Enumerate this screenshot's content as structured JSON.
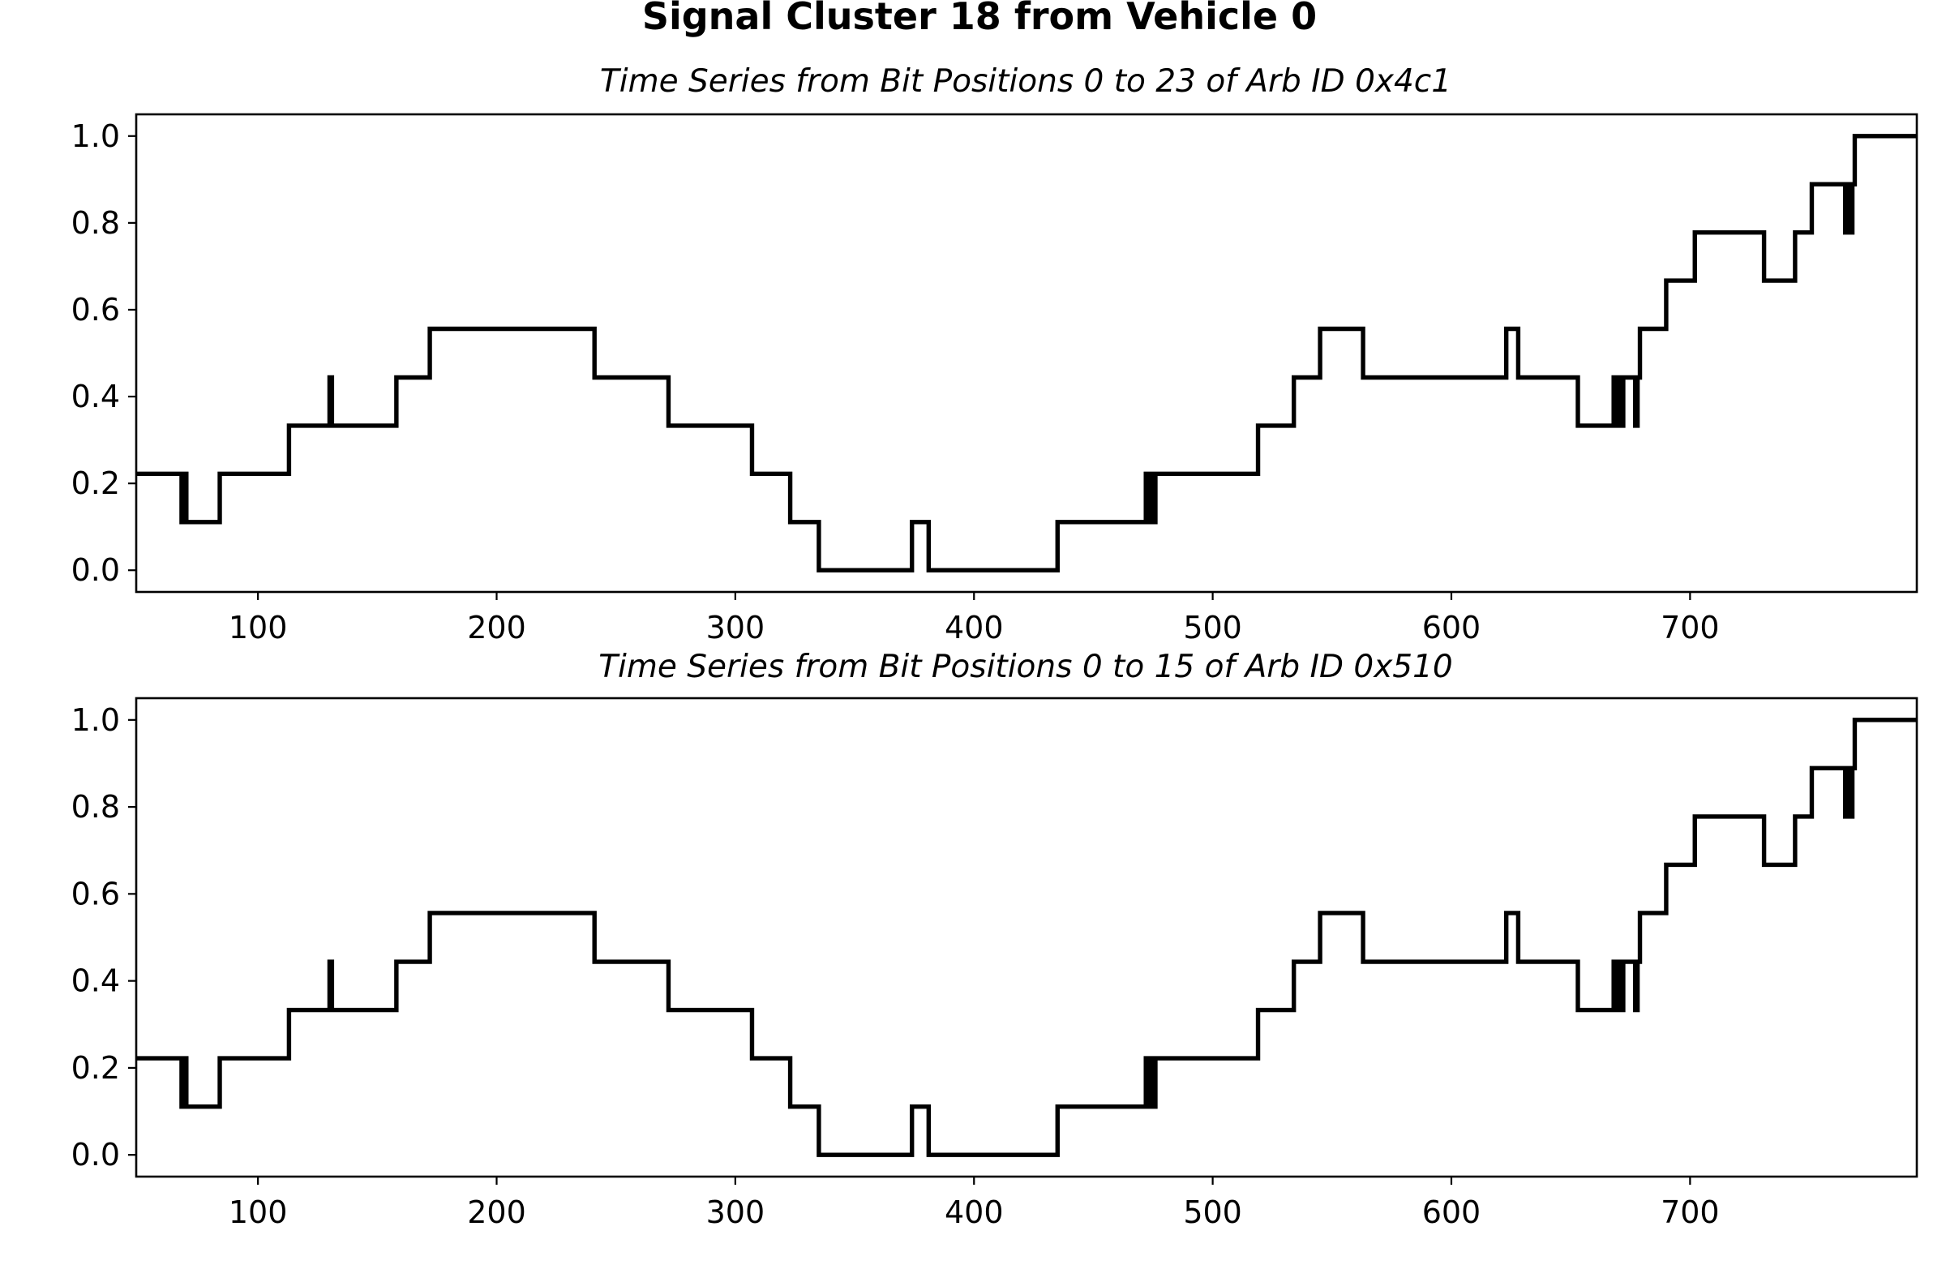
{
  "figure": {
    "suptitle": "Signal Cluster 18 from Vehicle 0"
  },
  "chart_data": [
    {
      "type": "line",
      "title": "Time Series from Bit Positions 0 to 23 of Arb ID 0x4c1",
      "xlabel": "",
      "ylabel": "",
      "xlim": [
        49,
        795
      ],
      "ylim": [
        -0.05,
        1.05
      ],
      "xticks": [
        100,
        200,
        300,
        400,
        500,
        600,
        700
      ],
      "yticks": [
        0.0,
        0.2,
        0.4,
        0.6,
        0.8,
        1.0
      ],
      "xtick_labels": [
        "100",
        "200",
        "300",
        "400",
        "500",
        "600",
        "700"
      ],
      "ytick_labels": [
        "0.0",
        "0.2",
        "0.4",
        "0.6",
        "0.8",
        "1.0"
      ],
      "grid": false,
      "line_color": "#000000",
      "step": true,
      "series": [
        {
          "x": [
            49,
            68,
            69,
            70,
            71,
            84,
            113,
            130,
            131,
            132,
            158,
            172,
            241,
            272,
            307,
            323,
            335,
            374,
            381,
            435,
            472,
            473,
            474,
            475,
            476,
            519,
            534,
            545,
            563,
            623,
            628,
            653,
            668,
            669,
            670,
            671,
            672,
            677,
            678,
            679,
            690,
            702,
            731,
            744,
            751,
            765,
            766,
            767,
            768,
            769,
            789,
            795
          ],
          "y": [
            0.222,
            0.111,
            0.222,
            0.111,
            0.111,
            0.222,
            0.333,
            0.444,
            0.333,
            0.333,
            0.444,
            0.556,
            0.444,
            0.333,
            0.222,
            0.111,
            0.0,
            0.111,
            0.0,
            0.111,
            0.222,
            0.111,
            0.222,
            0.111,
            0.222,
            0.333,
            0.444,
            0.556,
            0.444,
            0.556,
            0.444,
            0.333,
            0.444,
            0.333,
            0.444,
            0.333,
            0.444,
            0.333,
            0.444,
            0.556,
            0.667,
            0.778,
            0.667,
            0.778,
            0.889,
            0.778,
            0.889,
            0.778,
            0.889,
            1.0,
            1.0,
            1.0
          ]
        }
      ]
    },
    {
      "type": "line",
      "title": "Time Series from Bit Positions 0 to 15 of Arb ID 0x510",
      "xlabel": "",
      "ylabel": "",
      "xlim": [
        49,
        795
      ],
      "ylim": [
        -0.05,
        1.05
      ],
      "xticks": [
        100,
        200,
        300,
        400,
        500,
        600,
        700
      ],
      "yticks": [
        0.0,
        0.2,
        0.4,
        0.6,
        0.8,
        1.0
      ],
      "xtick_labels": [
        "100",
        "200",
        "300",
        "400",
        "500",
        "600",
        "700"
      ],
      "ytick_labels": [
        "0.0",
        "0.2",
        "0.4",
        "0.6",
        "0.8",
        "1.0"
      ],
      "grid": false,
      "line_color": "#000000",
      "step": true,
      "series": [
        {
          "x": [
            49,
            68,
            69,
            70,
            71,
            84,
            113,
            130,
            131,
            132,
            158,
            172,
            241,
            272,
            307,
            323,
            335,
            374,
            381,
            435,
            472,
            473,
            474,
            475,
            476,
            519,
            534,
            545,
            563,
            623,
            628,
            653,
            668,
            669,
            670,
            671,
            672,
            677,
            678,
            679,
            690,
            702,
            731,
            744,
            751,
            765,
            766,
            767,
            768,
            769,
            789,
            795
          ],
          "y": [
            0.222,
            0.111,
            0.222,
            0.111,
            0.111,
            0.222,
            0.333,
            0.444,
            0.333,
            0.333,
            0.444,
            0.556,
            0.444,
            0.333,
            0.222,
            0.111,
            0.0,
            0.111,
            0.0,
            0.111,
            0.222,
            0.111,
            0.222,
            0.111,
            0.222,
            0.333,
            0.444,
            0.556,
            0.444,
            0.556,
            0.444,
            0.333,
            0.444,
            0.333,
            0.444,
            0.333,
            0.444,
            0.333,
            0.444,
            0.556,
            0.667,
            0.778,
            0.667,
            0.778,
            0.889,
            0.778,
            0.889,
            0.778,
            0.889,
            1.0,
            1.0,
            1.0
          ]
        }
      ]
    }
  ]
}
